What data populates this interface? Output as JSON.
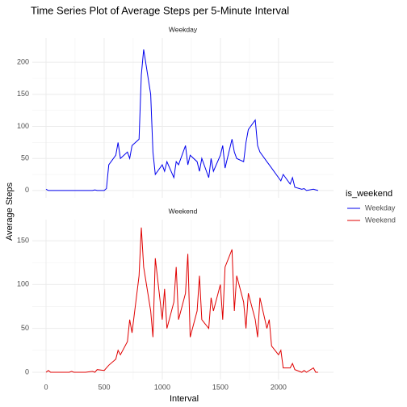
{
  "figure": {
    "title": "Time Series Plot of Average Steps per 5-Minute Interval",
    "xlabel": "Interval",
    "ylabel": "Average Steps",
    "legend_title": "is_weekend"
  },
  "chart_data": [
    {
      "type": "line",
      "title": "Weekday",
      "xlim": [
        -118,
        2473
      ],
      "ylim": [
        -11.5,
        238
      ],
      "xticks": [
        0,
        500,
        1000,
        1500,
        2000
      ],
      "yticks": [
        0,
        50,
        100,
        150,
        200
      ],
      "grid": true,
      "x": [
        0,
        20,
        40,
        100,
        120,
        140,
        200,
        220,
        240,
        300,
        320,
        340,
        400,
        420,
        440,
        500,
        520,
        540,
        600,
        620,
        640,
        700,
        720,
        740,
        800,
        820,
        840,
        900,
        920,
        940,
        1000,
        1020,
        1040,
        1100,
        1120,
        1140,
        1200,
        1220,
        1240,
        1300,
        1320,
        1340,
        1400,
        1420,
        1440,
        1500,
        1520,
        1540,
        1600,
        1620,
        1640,
        1700,
        1720,
        1740,
        1800,
        1820,
        1840,
        1900,
        1920,
        1940,
        2000,
        2020,
        2040,
        2100,
        2120,
        2140,
        2200,
        2220,
        2240,
        2300,
        2320,
        2340
      ],
      "series": [
        {
          "name": "Weekday",
          "color": "#0000ee",
          "values": [
            2,
            0,
            0,
            0,
            0,
            0,
            0,
            0,
            0,
            0,
            0,
            0,
            0,
            1,
            0,
            0,
            3,
            40,
            55,
            75,
            50,
            60,
            50,
            70,
            80,
            180,
            220,
            150,
            60,
            25,
            40,
            30,
            45,
            20,
            45,
            40,
            70,
            40,
            55,
            45,
            30,
            50,
            20,
            50,
            30,
            55,
            70,
            35,
            80,
            60,
            50,
            45,
            75,
            95,
            110,
            70,
            60,
            45,
            40,
            35,
            20,
            15,
            25,
            10,
            20,
            5,
            2,
            3,
            0,
            2,
            1,
            0
          ]
        }
      ]
    },
    {
      "type": "line",
      "title": "Weekend",
      "xlim": [
        -118,
        2473
      ],
      "ylim": [
        -8.3,
        174
      ],
      "xticks": [
        0,
        500,
        1000,
        1500,
        2000
      ],
      "yticks": [
        0,
        50,
        100,
        150
      ],
      "grid": true,
      "x": [
        0,
        20,
        40,
        100,
        120,
        140,
        200,
        220,
        240,
        300,
        320,
        340,
        400,
        420,
        440,
        500,
        520,
        540,
        600,
        620,
        640,
        700,
        720,
        740,
        800,
        820,
        840,
        900,
        920,
        940,
        1000,
        1020,
        1040,
        1100,
        1120,
        1140,
        1200,
        1220,
        1240,
        1300,
        1320,
        1340,
        1400,
        1420,
        1440,
        1500,
        1520,
        1540,
        1600,
        1620,
        1640,
        1700,
        1720,
        1740,
        1800,
        1820,
        1840,
        1900,
        1920,
        1940,
        2000,
        2020,
        2040,
        2100,
        2120,
        2140,
        2200,
        2220,
        2240,
        2300,
        2320,
        2340
      ],
      "series": [
        {
          "name": "Weekend",
          "color": "#e00000",
          "values": [
            0,
            2,
            0,
            0,
            0,
            0,
            0,
            1,
            0,
            0,
            0,
            0,
            1,
            0,
            3,
            2,
            5,
            8,
            15,
            25,
            20,
            35,
            60,
            45,
            110,
            165,
            120,
            70,
            40,
            130,
            60,
            95,
            50,
            80,
            120,
            60,
            90,
            135,
            40,
            70,
            110,
            60,
            50,
            85,
            70,
            100,
            60,
            120,
            140,
            70,
            110,
            80,
            50,
            90,
            60,
            40,
            85,
            50,
            60,
            30,
            20,
            25,
            5,
            5,
            10,
            3,
            0,
            2,
            0,
            5,
            0,
            0
          ]
        }
      ]
    }
  ]
}
